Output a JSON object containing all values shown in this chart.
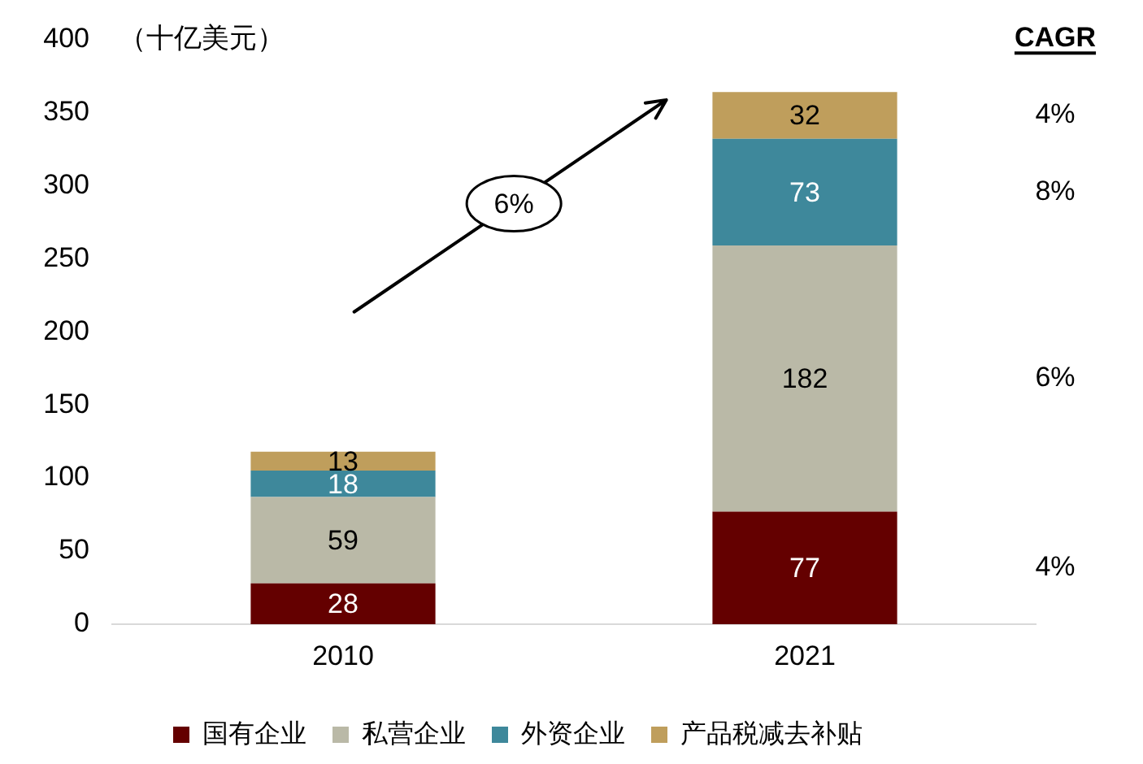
{
  "chart_data": {
    "type": "bar",
    "ylabel": "（十亿美元）",
    "categories": [
      "2010",
      "2021"
    ],
    "series": [
      {
        "name": "国有企业",
        "color": "#640000",
        "values": [
          28,
          77
        ]
      },
      {
        "name": "私营企业",
        "color": "#bab9a7",
        "values": [
          59,
          182
        ]
      },
      {
        "name": "外资企业",
        "color": "#3e889b",
        "values": [
          18,
          73
        ]
      },
      {
        "name": "产品税减去补贴",
        "color": "#bf9e5c",
        "values": [
          13,
          32
        ]
      }
    ],
    "stacked": true,
    "ylim": [
      0,
      400
    ],
    "yticks": [
      0,
      50,
      100,
      150,
      200,
      250,
      300,
      350,
      400
    ],
    "grid": false,
    "legend": "bottom",
    "data_labels": true,
    "annotations": [
      "6%",
      "CAGR",
      "4%",
      "8%",
      "6%",
      "4%"
    ]
  }
}
